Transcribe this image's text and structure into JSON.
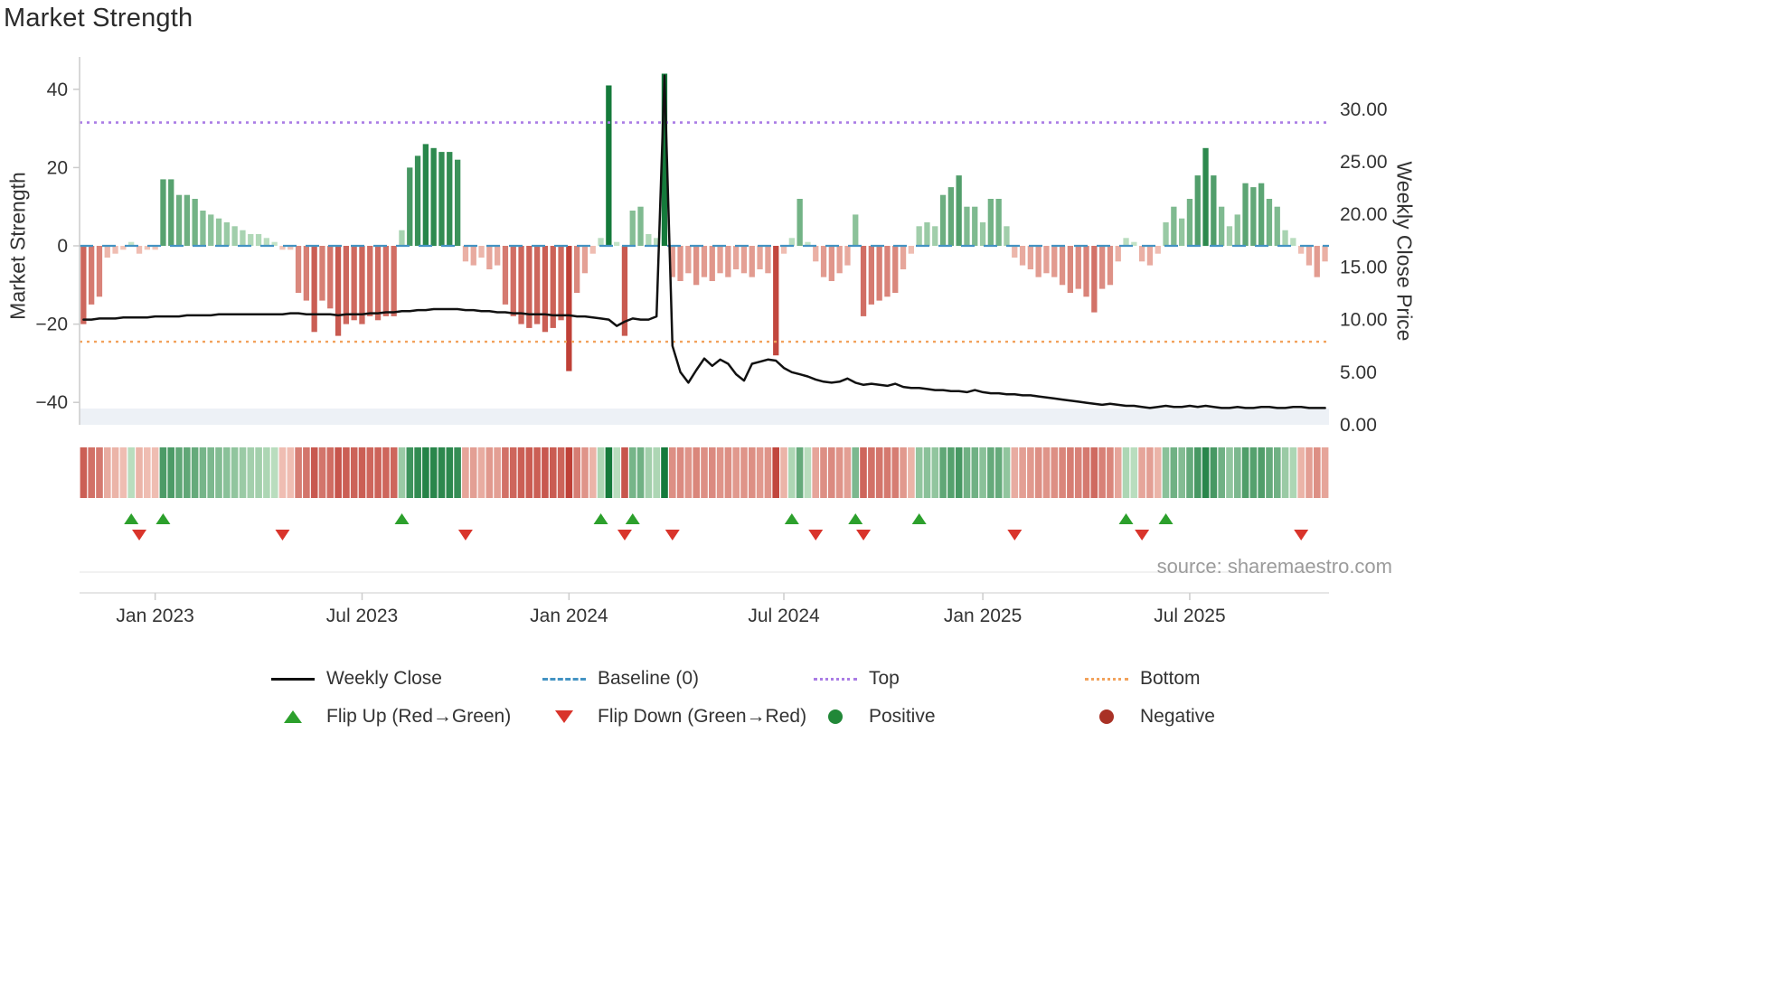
{
  "title": "Market Strength",
  "source": "source: sharemaestro.com",
  "axes": {
    "left_label": "Market Strength",
    "right_label": "Weekly Close Price",
    "left_ticks": [
      {
        "label": "40",
        "value": 40
      },
      {
        "label": "20",
        "value": 20
      },
      {
        "label": "0",
        "value": 0
      },
      {
        "label": "−20",
        "value": -20
      },
      {
        "label": "−40",
        "value": -40
      }
    ],
    "right_ticks": [
      {
        "label": "30.00",
        "value": 30
      },
      {
        "label": "25.00",
        "value": 25
      },
      {
        "label": "20.00",
        "value": 20
      },
      {
        "label": "15.00",
        "value": 15
      },
      {
        "label": "10.00",
        "value": 10
      },
      {
        "label": "5.00",
        "value": 5
      },
      {
        "label": "0.00",
        "value": 0
      }
    ],
    "x_ticks": [
      {
        "label": "Jan 2023",
        "index": 9
      },
      {
        "label": "Jul 2023",
        "index": 35
      },
      {
        "label": "Jan 2024",
        "index": 61
      },
      {
        "label": "Jul 2024",
        "index": 88
      },
      {
        "label": "Jan 2025",
        "index": 113
      },
      {
        "label": "Jul 2025",
        "index": 139
      }
    ]
  },
  "legend": {
    "weekly_close": "Weekly Close",
    "baseline": "Baseline (0)",
    "top": "Top",
    "bottom": "Bottom",
    "flip_up": "Flip Up (Red→Green)",
    "flip_down": "Flip Down (Green→Red)",
    "positive": "Positive",
    "negative": "Negative"
  },
  "colors": {
    "line": "#111111",
    "baseline": "#4393c3",
    "top": "#aa7ce5",
    "bottom": "#f2a25c",
    "flip_up": "#2ca02c",
    "flip_down": "#d9342b",
    "positive_dot": "#218838",
    "negative_dot": "#a93226",
    "bar_green_light": "#d2ecd2",
    "bar_green_dark": "#157a3b",
    "bar_red_light": "#f6d0c4",
    "bar_red_dark": "#bf4037"
  },
  "chart_data": {
    "type": "bar",
    "subtype": "weekly strength bars + weekly close price line + top/bottom threshold lines + sign heatmap strip + flip markers",
    "title": "Market Strength",
    "xlabel": "",
    "ylabel_left": "Market Strength",
    "ylabel_right": "Weekly Close Price",
    "left_ylim": [
      -46,
      46
    ],
    "right_ylim": [
      0,
      34
    ],
    "top_threshold": 31.5,
    "bottom_threshold": -24.5,
    "weeks": 157,
    "strength": [
      -20,
      -15,
      -13,
      -3,
      -2,
      -1,
      1,
      -2,
      -1,
      -1,
      17,
      17,
      13,
      13,
      12,
      9,
      8,
      7,
      6,
      5,
      4,
      3,
      3,
      2,
      1,
      -1,
      -1,
      -12,
      -14,
      -22,
      -14,
      -16,
      -23,
      -20,
      -19,
      -20,
      -18,
      -19,
      -18,
      -18,
      4,
      20,
      23,
      26,
      25,
      24,
      24,
      22,
      -4,
      -5,
      -3,
      -6,
      -5,
      -15,
      -18,
      -20,
      -21,
      -20,
      -22,
      -21,
      -19,
      -32,
      -12,
      -7,
      -2,
      2,
      41,
      1,
      -23,
      9,
      10,
      3,
      2,
      44,
      -8,
      -9,
      -7,
      -10,
      -8,
      -9,
      -7,
      -8,
      -6,
      -7,
      -8,
      -6,
      -7,
      -28,
      -2,
      2,
      12,
      1,
      -4,
      -8,
      -9,
      -7,
      -5,
      8,
      -18,
      -15,
      -14,
      -13,
      -12,
      -6,
      -2,
      5,
      6,
      5,
      13,
      15,
      18,
      10,
      10,
      6,
      12,
      12,
      5,
      -3,
      -5,
      -6,
      -8,
      -7,
      -8,
      -10,
      -12,
      -11,
      -13,
      -17,
      -11,
      -10,
      -4,
      2,
      1,
      -4,
      -5,
      -2,
      6,
      10,
      7,
      12,
      18,
      25,
      18,
      10,
      5,
      8,
      16,
      15,
      16,
      12,
      10,
      4,
      2,
      -2,
      -5,
      -8,
      -4
    ],
    "price": [
      10.0,
      10.0,
      10.1,
      10.1,
      10.1,
      10.2,
      10.2,
      10.2,
      10.2,
      10.3,
      10.3,
      10.3,
      10.3,
      10.4,
      10.4,
      10.4,
      10.4,
      10.5,
      10.5,
      10.5,
      10.5,
      10.5,
      10.5,
      10.5,
      10.5,
      10.5,
      10.6,
      10.6,
      10.5,
      10.5,
      10.5,
      10.5,
      10.4,
      10.5,
      10.5,
      10.5,
      10.6,
      10.6,
      10.7,
      10.7,
      10.8,
      10.8,
      10.9,
      10.9,
      11.0,
      11.0,
      11.0,
      11.0,
      10.9,
      10.9,
      10.8,
      10.8,
      10.7,
      10.7,
      10.6,
      10.6,
      10.5,
      10.5,
      10.5,
      10.4,
      10.4,
      10.4,
      10.3,
      10.3,
      10.2,
      10.1,
      10.0,
      9.4,
      9.8,
      10.1,
      10.0,
      10.0,
      10.3,
      33.2,
      7.5,
      5.0,
      4.0,
      5.2,
      6.3,
      5.6,
      6.2,
      5.8,
      4.8,
      4.2,
      5.8,
      6.0,
      6.2,
      6.1,
      5.4,
      5.0,
      4.8,
      4.6,
      4.3,
      4.1,
      4.0,
      4.1,
      4.4,
      4.0,
      3.8,
      3.9,
      3.8,
      3.7,
      3.9,
      3.6,
      3.5,
      3.5,
      3.4,
      3.3,
      3.3,
      3.2,
      3.2,
      3.1,
      3.3,
      3.1,
      3.0,
      3.0,
      2.9,
      2.9,
      2.8,
      2.8,
      2.7,
      2.6,
      2.5,
      2.4,
      2.3,
      2.2,
      2.1,
      2.0,
      1.9,
      2.0,
      1.9,
      1.8,
      1.8,
      1.7,
      1.6,
      1.7,
      1.8,
      1.7,
      1.7,
      1.8,
      1.7,
      1.8,
      1.7,
      1.6,
      1.6,
      1.7,
      1.6,
      1.6,
      1.7,
      1.7,
      1.6,
      1.6,
      1.7,
      1.7,
      1.6,
      1.6,
      1.6
    ]
  }
}
